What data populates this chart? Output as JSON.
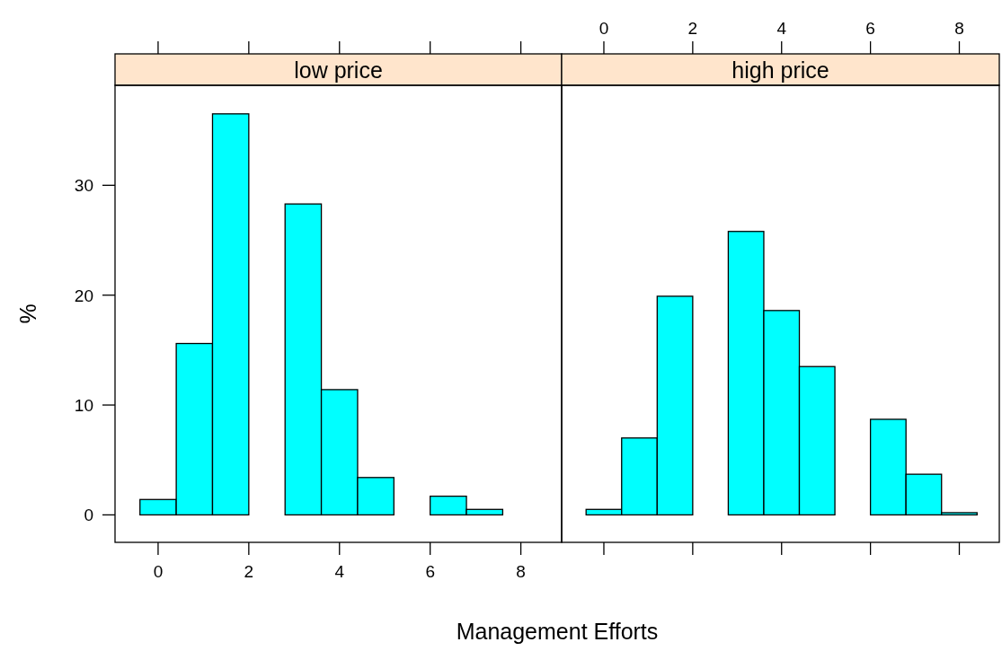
{
  "chart_data": [
    {
      "type": "histogram",
      "title": "low price",
      "xlabel": "Management Efforts",
      "ylabel": "%",
      "color": "#00ffff",
      "bins": [
        -0.4,
        0.4,
        1.2,
        2.0,
        2.8,
        3.6,
        4.4,
        5.2,
        6.0,
        6.8,
        7.6,
        8.4
      ],
      "values": [
        1.4,
        15.6,
        36.5,
        0,
        28.3,
        11.4,
        3.4,
        0,
        1.7,
        0.5,
        0
      ],
      "xlim": [
        -0.95,
        8.9
      ],
      "xticks": [
        0,
        2,
        4,
        6,
        8
      ],
      "ylim": [
        -2.5,
        39.1
      ],
      "yticks": [
        0,
        10,
        20,
        30
      ],
      "grid": false
    },
    {
      "type": "histogram",
      "title": "high price",
      "color": "#00ffff",
      "bins": [
        -0.4,
        0.4,
        1.2,
        2.0,
        2.8,
        3.6,
        4.4,
        5.2,
        6.0,
        6.8,
        7.6,
        8.4
      ],
      "values": [
        0.5,
        7.0,
        19.9,
        0,
        25.8,
        18.6,
        13.5,
        0,
        8.7,
        3.7,
        0.2
      ],
      "xlim": [
        -0.95,
        8.9
      ],
      "xticks": [
        0,
        2,
        4,
        6,
        8
      ],
      "ylim": [
        -2.5,
        39.1
      ],
      "grid": false,
      "tick_labels": "x"
    }
  ]
}
